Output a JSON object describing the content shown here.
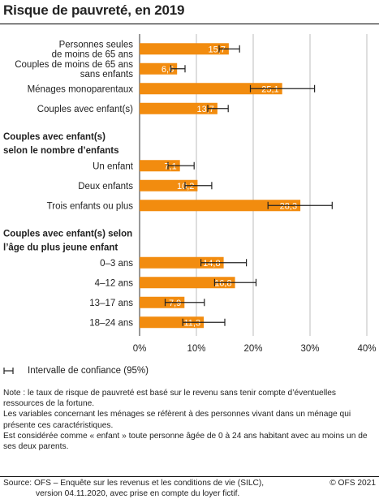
{
  "chart_data": {
    "type": "bar",
    "orientation": "horizontal",
    "title": "Risque de pauvreté, en 2019",
    "xlim": [
      0,
      40
    ],
    "x_ticks": [
      "0%",
      "10%",
      "20%",
      "30%",
      "40%"
    ],
    "grid": true,
    "rows": [
      {
        "kind": "bar",
        "label": [
          "Personnes seules",
          "de moins de 65 ans"
        ],
        "value": 15.7,
        "value_label": "15,7",
        "ci": [
          14.0,
          17.6
        ]
      },
      {
        "kind": "bar",
        "label": [
          "Couples de moins de 65 ans",
          "sans enfants"
        ],
        "value": 6.6,
        "value_label": "6,6",
        "ci": [
          5.5,
          8.0
        ]
      },
      {
        "kind": "bar",
        "label": [
          "Ménages monoparentaux"
        ],
        "value": 25.1,
        "value_label": "25,1",
        "ci": [
          19.5,
          30.8
        ]
      },
      {
        "kind": "bar",
        "label": [
          "Couples avec enfant(s)"
        ],
        "value": 13.7,
        "value_label": "13,7",
        "ci": [
          12.0,
          15.6
        ]
      },
      {
        "kind": "group",
        "label": [
          "Couples avec enfant(s)",
          "selon le nombre d’enfants"
        ]
      },
      {
        "kind": "bar",
        "label": [
          "Un enfant"
        ],
        "value": 7.1,
        "value_label": "7,1",
        "ci": [
          5.0,
          9.6
        ]
      },
      {
        "kind": "bar",
        "label": [
          "Deux enfants"
        ],
        "value": 10.2,
        "value_label": "10,2",
        "ci": [
          8.0,
          12.7
        ]
      },
      {
        "kind": "bar",
        "label": [
          "Trois enfants ou plus"
        ],
        "value": 28.3,
        "value_label": "28,3",
        "ci": [
          22.6,
          33.9
        ]
      },
      {
        "kind": "group",
        "label": [
          "Couples avec enfant(s) selon",
          "l’âge du plus jeune enfant"
        ]
      },
      {
        "kind": "bar",
        "label": [
          "0–3 ans"
        ],
        "value": 14.8,
        "value_label": "14,8",
        "ci": [
          10.8,
          18.8
        ]
      },
      {
        "kind": "bar",
        "label": [
          "4–12 ans"
        ],
        "value": 16.8,
        "value_label": "16,8",
        "ci": [
          13.2,
          20.5
        ]
      },
      {
        "kind": "bar",
        "label": [
          "13–17 ans"
        ],
        "value": 7.9,
        "value_label": "7,9",
        "ci": [
          4.5,
          11.4
        ]
      },
      {
        "kind": "bar",
        "label": [
          "18–24 ans"
        ],
        "value": 11.3,
        "value_label": "11,3",
        "ci": [
          7.6,
          15.0
        ]
      }
    ],
    "bar_color": "#f28c0f",
    "ci_color": "#222222"
  },
  "legend": {
    "ci_label": "Intervalle de confiance (95%)"
  },
  "note": {
    "lines": [
      "Note : le taux de risque de pauvreté est basé sur le revenu sans tenir compte d’éventuelles ressources de la fortune.",
      "Les variables concernant les ménages se réfèrent à des personnes vivant dans un ménage qui présente ces caractéristiques.",
      "Est considérée comme « enfant » toute personne âgée de 0 à 24 ans habitant avec au moins un de ses deux parents."
    ]
  },
  "footer": {
    "source_line1": "Source: OFS – Enquête sur les revenus et les conditions de vie (SILC),",
    "source_line2": "version 04.11.2020, avec prise en compte du loyer fictif.",
    "copyright": "© OFS 2021"
  }
}
